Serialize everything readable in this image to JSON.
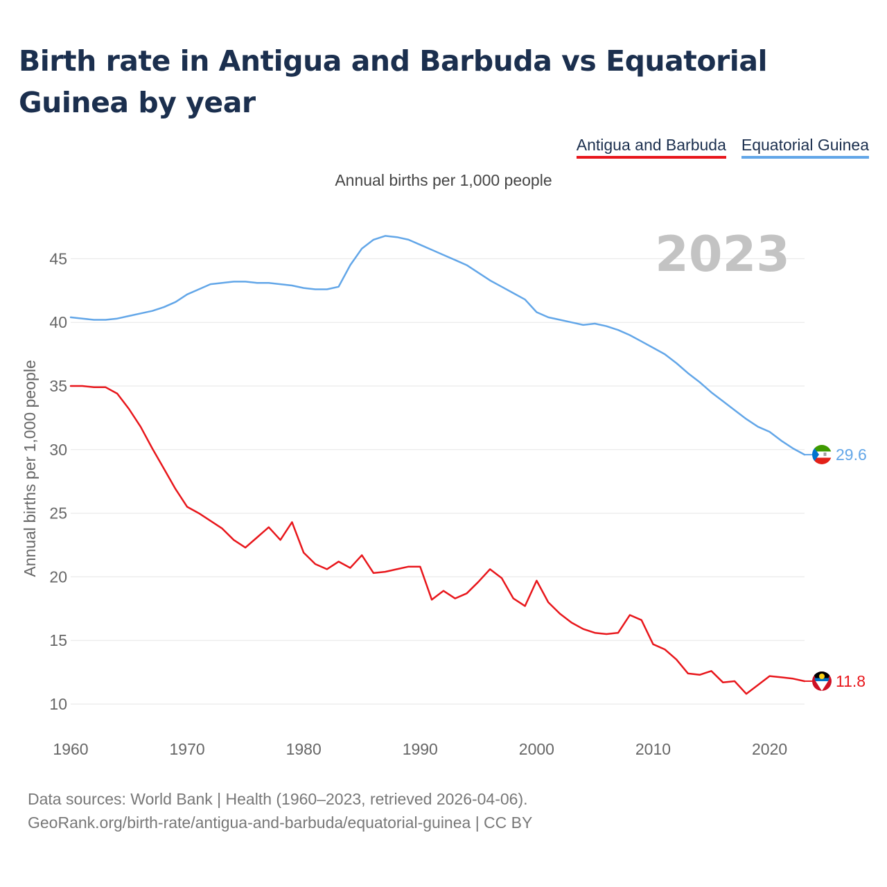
{
  "title": "Birth rate in Antigua and Barbuda vs Equatorial Guinea by year",
  "subtitle": "Annual births per 1,000 people",
  "footer": {
    "line1": "Data sources: World Bank | Health (1960–2023, retrieved 2026-04-06).",
    "line2": "GeoRank.org/birth-rate/antigua-and-barbuda/equatorial-guinea | CC BY"
  },
  "colors": {
    "antigua": "#e8161b",
    "equatorial": "#62a6e8",
    "grid": "#e6e6e6",
    "year": "#c3c3c3",
    "axis_text": "#666666"
  },
  "chart_data": {
    "type": "line",
    "title": "Birth rate in Antigua and Barbuda vs Equatorial Guinea by year",
    "xlabel": "",
    "ylabel": "Annual births per 1,000 people",
    "year_label": "2023",
    "xlim": [
      1960,
      2023
    ],
    "ylim": [
      10,
      47
    ],
    "xticks": [
      1960,
      1970,
      1980,
      1990,
      2000,
      2010,
      2020
    ],
    "yticks": [
      10,
      15,
      20,
      25,
      30,
      35,
      40,
      45
    ],
    "grid": true,
    "legend": "top-right",
    "series": [
      {
        "name": "Antigua and Barbuda",
        "key": "antigua",
        "end_label": "11.8",
        "x": [
          1960,
          1961,
          1962,
          1963,
          1964,
          1965,
          1966,
          1967,
          1968,
          1969,
          1970,
          1971,
          1972,
          1973,
          1974,
          1975,
          1976,
          1977,
          1978,
          1979,
          1980,
          1981,
          1982,
          1983,
          1984,
          1985,
          1986,
          1987,
          1988,
          1989,
          1990,
          1991,
          1992,
          1993,
          1994,
          1995,
          1996,
          1997,
          1998,
          1999,
          2000,
          2001,
          2002,
          2003,
          2004,
          2005,
          2006,
          2007,
          2008,
          2009,
          2010,
          2011,
          2012,
          2013,
          2014,
          2015,
          2016,
          2017,
          2018,
          2019,
          2020,
          2021,
          2022,
          2023
        ],
        "values": [
          35.0,
          35.0,
          34.9,
          34.9,
          34.4,
          33.2,
          31.8,
          30.1,
          28.5,
          26.9,
          25.5,
          25.0,
          24.4,
          23.8,
          22.9,
          22.3,
          23.1,
          23.9,
          22.9,
          24.3,
          21.9,
          21.0,
          20.6,
          21.2,
          20.7,
          21.7,
          20.3,
          20.4,
          20.6,
          20.8,
          20.8,
          18.2,
          18.9,
          18.3,
          18.7,
          19.6,
          20.6,
          19.9,
          18.3,
          17.7,
          19.7,
          18.0,
          17.1,
          16.4,
          15.9,
          15.6,
          15.5,
          15.6,
          17.0,
          16.6,
          14.7,
          14.3,
          13.5,
          12.4,
          12.3,
          12.6,
          11.7,
          11.8,
          10.8,
          11.5,
          12.2,
          12.1,
          12.0,
          11.8
        ]
      },
      {
        "name": "Equatorial Guinea",
        "key": "equatorial",
        "end_label": "29.6",
        "x": [
          1960,
          1961,
          1962,
          1963,
          1964,
          1965,
          1966,
          1967,
          1968,
          1969,
          1970,
          1971,
          1972,
          1973,
          1974,
          1975,
          1976,
          1977,
          1978,
          1979,
          1980,
          1981,
          1982,
          1983,
          1984,
          1985,
          1986,
          1987,
          1988,
          1989,
          1990,
          1991,
          1992,
          1993,
          1994,
          1995,
          1996,
          1997,
          1998,
          1999,
          2000,
          2001,
          2002,
          2003,
          2004,
          2005,
          2006,
          2007,
          2008,
          2009,
          2010,
          2011,
          2012,
          2013,
          2014,
          2015,
          2016,
          2017,
          2018,
          2019,
          2020,
          2021,
          2022,
          2023
        ],
        "values": [
          40.4,
          40.3,
          40.2,
          40.2,
          40.3,
          40.5,
          40.7,
          40.9,
          41.2,
          41.6,
          42.2,
          42.6,
          43.0,
          43.1,
          43.2,
          43.2,
          43.1,
          43.1,
          43.0,
          42.9,
          42.7,
          42.6,
          42.6,
          42.8,
          44.5,
          45.8,
          46.5,
          46.8,
          46.7,
          46.5,
          46.1,
          45.7,
          45.3,
          44.9,
          44.5,
          43.9,
          43.3,
          42.8,
          42.3,
          41.8,
          40.8,
          40.4,
          40.2,
          40.0,
          39.8,
          39.9,
          39.7,
          39.4,
          39.0,
          38.5,
          38.0,
          37.5,
          36.8,
          36.0,
          35.3,
          34.5,
          33.8,
          33.1,
          32.4,
          31.8,
          31.4,
          30.7,
          30.1,
          29.6
        ]
      }
    ]
  }
}
